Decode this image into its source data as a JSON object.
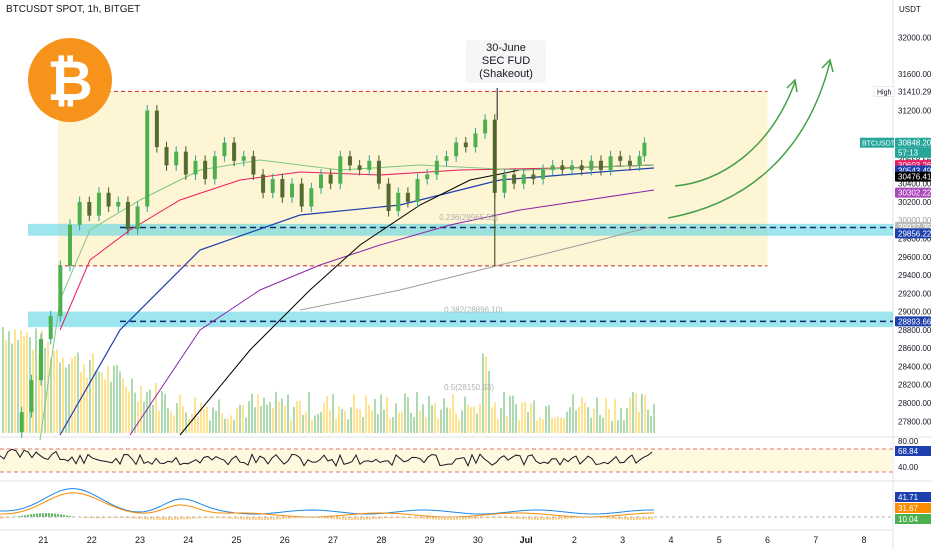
{
  "chart_data": {
    "type": "candlestick",
    "title": "BTCUSDT SPOT, 1h, BITGET",
    "currency": "USDT",
    "symbol": "BTCUSDT",
    "ylim": [
      27650,
      32300
    ],
    "y_ticks": [
      27800,
      28000,
      28200,
      28400,
      28600,
      28800,
      29000,
      29200,
      29400,
      29600,
      29800,
      30000,
      30200,
      30400,
      31200,
      31600,
      32000
    ],
    "x_ticks": [
      {
        "label": "21",
        "day": 21
      },
      {
        "label": "22",
        "day": 22
      },
      {
        "label": "23",
        "day": 23
      },
      {
        "label": "24",
        "day": 24
      },
      {
        "label": "25",
        "day": 25
      },
      {
        "label": "26",
        "day": 26
      },
      {
        "label": "27",
        "day": 27
      },
      {
        "label": "28",
        "day": 28
      },
      {
        "label": "29",
        "day": 29
      },
      {
        "label": "30",
        "day": 30
      },
      {
        "label": "Jul",
        "day": 31
      },
      {
        "label": "2",
        "day": 32
      },
      {
        "label": "3",
        "day": 33
      },
      {
        "label": "4",
        "day": 34
      },
      {
        "label": "5",
        "day": 35
      },
      {
        "label": "6",
        "day": 36
      },
      {
        "label": "7",
        "day": 37
      },
      {
        "label": "8",
        "day": 38
      }
    ],
    "high_label": "High",
    "price_labels": [
      {
        "value": 31410.29,
        "text": "31410.29",
        "bg": "#ffffff",
        "fg": "#131722"
      },
      {
        "value": 30848.2,
        "text": "30848.20",
        "bg": "#26a69a",
        "fg": "#ffffff"
      },
      {
        "value": 30696.21,
        "text": "30696.21",
        "bg": "#4caf50",
        "fg": "#ffffff"
      },
      {
        "value": 30658.56,
        "text": "30658.56",
        "bg": "#ffffff",
        "fg": "#131722"
      },
      {
        "value": 30603.26,
        "text": "30603.26",
        "bg": "#e91e63",
        "fg": "#ffffff"
      },
      {
        "value": 30543.49,
        "text": "30543.49",
        "bg": "#1e3fae",
        "fg": "#ffffff"
      },
      {
        "value": 30476.41,
        "text": "30476.41",
        "bg": "#000000",
        "fg": "#ffffff"
      },
      {
        "value": 30302.22,
        "text": "30302.22",
        "bg": "#ab47bc",
        "fg": "#ffffff"
      },
      {
        "value": 30000.0,
        "text": "30000.00",
        "bg": "#ffffff",
        "fg": "#9e9e9e"
      },
      {
        "value": 29927.35,
        "text": "29927.35",
        "bg": "#bdbdbd",
        "fg": "#ffffff"
      },
      {
        "value": 29856.22,
        "text": "29856.22",
        "bg": "#1e3fae",
        "fg": "#ffffff"
      },
      {
        "value": 28893.66,
        "text": "28893.66",
        "bg": "#1e3fae",
        "fg": "#ffffff"
      }
    ],
    "countdown": "57:13",
    "range_box": {
      "top": 31410,
      "bottom": 29500,
      "day_start": 21.3,
      "day_end": 36.0
    },
    "support_zones": [
      {
        "low": 29830,
        "high": 29960,
        "dashed": 29920
      },
      {
        "low": 28830,
        "high": 29000,
        "dashed": 28893
      }
    ],
    "fib_labels": [
      {
        "text": "0.236(29965.55)",
        "value": 30000,
        "day": 29.2
      },
      {
        "text": "0.382(28896.10)",
        "value": 28990,
        "day": 29.3
      },
      {
        "text": "0.5(28150.93)",
        "value": 28140,
        "day": 29.3
      }
    ],
    "annotation": {
      "lines": [
        "30-June",
        "SEC FUD",
        "(Shakeout)"
      ]
    },
    "candles": [
      {
        "day": 20.55,
        "o": 27680,
        "c": 27900
      },
      {
        "day": 20.75,
        "o": 27900,
        "c": 28250
      },
      {
        "day": 20.95,
        "o": 28250,
        "c": 28700
      },
      {
        "day": 21.15,
        "o": 28700,
        "c": 28950
      },
      {
        "day": 21.35,
        "o": 28950,
        "c": 29500
      },
      {
        "day": 21.55,
        "o": 29500,
        "c": 29950
      },
      {
        "day": 21.75,
        "o": 29950,
        "c": 30200
      },
      {
        "day": 21.95,
        "o": 30200,
        "c": 30050
      },
      {
        "day": 22.15,
        "o": 30050,
        "c": 30300
      },
      {
        "day": 22.35,
        "o": 30300,
        "c": 30150
      },
      {
        "day": 22.55,
        "o": 30150,
        "c": 30200
      },
      {
        "day": 22.75,
        "o": 30200,
        "c": 29900
      },
      {
        "day": 22.95,
        "o": 29900,
        "c": 30150
      },
      {
        "day": 23.15,
        "o": 30150,
        "c": 31200
      },
      {
        "day": 23.35,
        "o": 31200,
        "c": 30800
      },
      {
        "day": 23.55,
        "o": 30800,
        "c": 30600
      },
      {
        "day": 23.75,
        "o": 30600,
        "c": 30750
      },
      {
        "day": 23.95,
        "o": 30750,
        "c": 30500
      },
      {
        "day": 24.15,
        "o": 30500,
        "c": 30650
      },
      {
        "day": 24.35,
        "o": 30650,
        "c": 30450
      },
      {
        "day": 24.55,
        "o": 30450,
        "c": 30700
      },
      {
        "day": 24.75,
        "o": 30700,
        "c": 30850
      },
      {
        "day": 24.95,
        "o": 30850,
        "c": 30650
      },
      {
        "day": 25.15,
        "o": 30650,
        "c": 30700
      },
      {
        "day": 25.35,
        "o": 30700,
        "c": 30500
      },
      {
        "day": 25.55,
        "o": 30500,
        "c": 30300
      },
      {
        "day": 25.75,
        "o": 30300,
        "c": 30450
      },
      {
        "day": 25.95,
        "o": 30450,
        "c": 30250
      },
      {
        "day": 26.15,
        "o": 30250,
        "c": 30400
      },
      {
        "day": 26.35,
        "o": 30400,
        "c": 30150
      },
      {
        "day": 26.55,
        "o": 30150,
        "c": 30350
      },
      {
        "day": 26.75,
        "o": 30350,
        "c": 30500
      },
      {
        "day": 26.95,
        "o": 30500,
        "c": 30400
      },
      {
        "day": 27.15,
        "o": 30400,
        "c": 30700
      },
      {
        "day": 27.35,
        "o": 30700,
        "c": 30600
      },
      {
        "day": 27.55,
        "o": 30600,
        "c": 30550
      },
      {
        "day": 27.75,
        "o": 30550,
        "c": 30650
      },
      {
        "day": 27.95,
        "o": 30650,
        "c": 30400
      },
      {
        "day": 28.15,
        "o": 30400,
        "c": 30100
      },
      {
        "day": 28.35,
        "o": 30100,
        "c": 30300
      },
      {
        "day": 28.55,
        "o": 30300,
        "c": 30200
      },
      {
        "day": 28.75,
        "o": 30200,
        "c": 30450
      },
      {
        "day": 28.95,
        "o": 30450,
        "c": 30500
      },
      {
        "day": 29.15,
        "o": 30500,
        "c": 30650
      },
      {
        "day": 29.35,
        "o": 30650,
        "c": 30700
      },
      {
        "day": 29.55,
        "o": 30700,
        "c": 30850
      },
      {
        "day": 29.75,
        "o": 30850,
        "c": 30800
      },
      {
        "day": 29.95,
        "o": 30800,
        "c": 30950
      },
      {
        "day": 30.15,
        "o": 30950,
        "c": 31100
      },
      {
        "day": 30.35,
        "o": 31100,
        "c": 30300
      },
      {
        "day": 30.55,
        "o": 30300,
        "c": 30500
      },
      {
        "day": 30.75,
        "o": 30500,
        "c": 30400
      },
      {
        "day": 30.95,
        "o": 30400,
        "c": 30500
      },
      {
        "day": 31.15,
        "o": 30500,
        "c": 30450
      },
      {
        "day": 31.35,
        "o": 30450,
        "c": 30550
      },
      {
        "day": 31.55,
        "o": 30550,
        "c": 30600
      },
      {
        "day": 31.75,
        "o": 30600,
        "c": 30550
      },
      {
        "day": 31.95,
        "o": 30550,
        "c": 30600
      },
      {
        "day": 32.15,
        "o": 30600,
        "c": 30550
      },
      {
        "day": 32.35,
        "o": 30550,
        "c": 30650
      },
      {
        "day": 32.55,
        "o": 30650,
        "c": 30550
      },
      {
        "day": 32.75,
        "o": 30550,
        "c": 30700
      },
      {
        "day": 32.95,
        "o": 30700,
        "c": 30650
      },
      {
        "day": 33.15,
        "o": 30650,
        "c": 30600
      },
      {
        "day": 33.35,
        "o": 30600,
        "c": 30700
      },
      {
        "day": 33.45,
        "o": 30700,
        "c": 30848
      }
    ],
    "rsi": {
      "ticks": [
        80,
        40
      ],
      "value": "68.84",
      "level_top": 70,
      "level_bottom": 30
    },
    "macd": {
      "values": [
        "41.71",
        "31.67",
        "10.04"
      ]
    }
  }
}
